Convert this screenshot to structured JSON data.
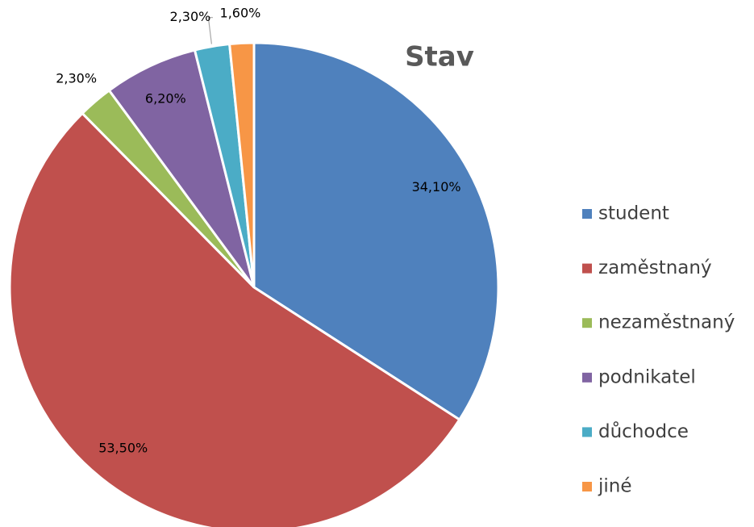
{
  "chart_data": {
    "type": "pie",
    "title": "Stav",
    "categories": [
      "student",
      "zaměstnaný",
      "nezaměstnaný",
      "podnikatel",
      "důchodce",
      "jiné"
    ],
    "values": [
      34.1,
      53.5,
      2.3,
      6.2,
      2.3,
      1.6
    ],
    "value_labels": [
      "34,10%",
      "53,50%",
      "2,30%",
      "6,20%",
      "2,30%",
      "1,60%"
    ],
    "colors": [
      "#4f81bd",
      "#c0504d",
      "#9bbb59",
      "#8064a2",
      "#4bacc6",
      "#f79646"
    ],
    "legend": "right"
  }
}
